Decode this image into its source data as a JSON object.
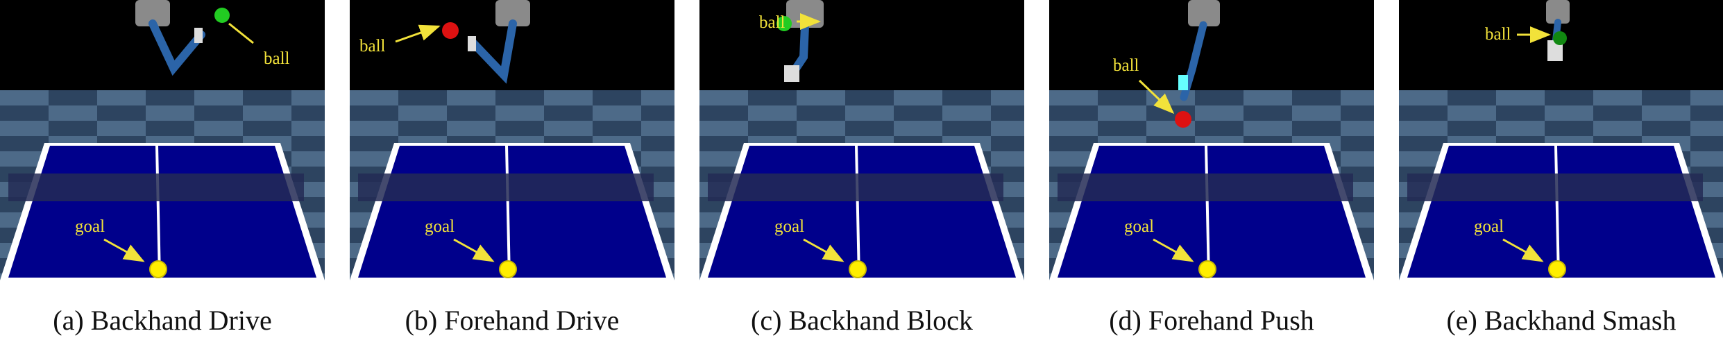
{
  "panels": [
    {
      "id": "a",
      "caption": "(a) Backhand Drive",
      "ball_label": "ball",
      "goal_label": "goal",
      "ball_color": "#22cc22"
    },
    {
      "id": "b",
      "caption": "(b) Forehand Drive",
      "ball_label": "ball",
      "goal_label": "goal",
      "ball_color": "#dd1111"
    },
    {
      "id": "c",
      "caption": "(c) Backhand Block",
      "ball_label": "ball",
      "goal_label": "goal",
      "ball_color": "#22cc22"
    },
    {
      "id": "d",
      "caption": "(d) Forehand Push",
      "ball_label": "ball",
      "goal_label": "goal",
      "ball_color": "#dd1111"
    },
    {
      "id": "e",
      "caption": "(e) Backhand Smash",
      "ball_label": "ball",
      "goal_label": "goal",
      "ball_color": "#118811"
    }
  ],
  "colors": {
    "sky": "#000000",
    "floor_dark": "#2d4460",
    "floor_light": "#4d6a88",
    "table": "#00008b",
    "table_line": "#ffffff",
    "net": "#232a55",
    "label": "#f2e23a",
    "goal_marker": "#ffee00",
    "arm": "#2b64a8",
    "gripper": "#8a8a8a"
  }
}
